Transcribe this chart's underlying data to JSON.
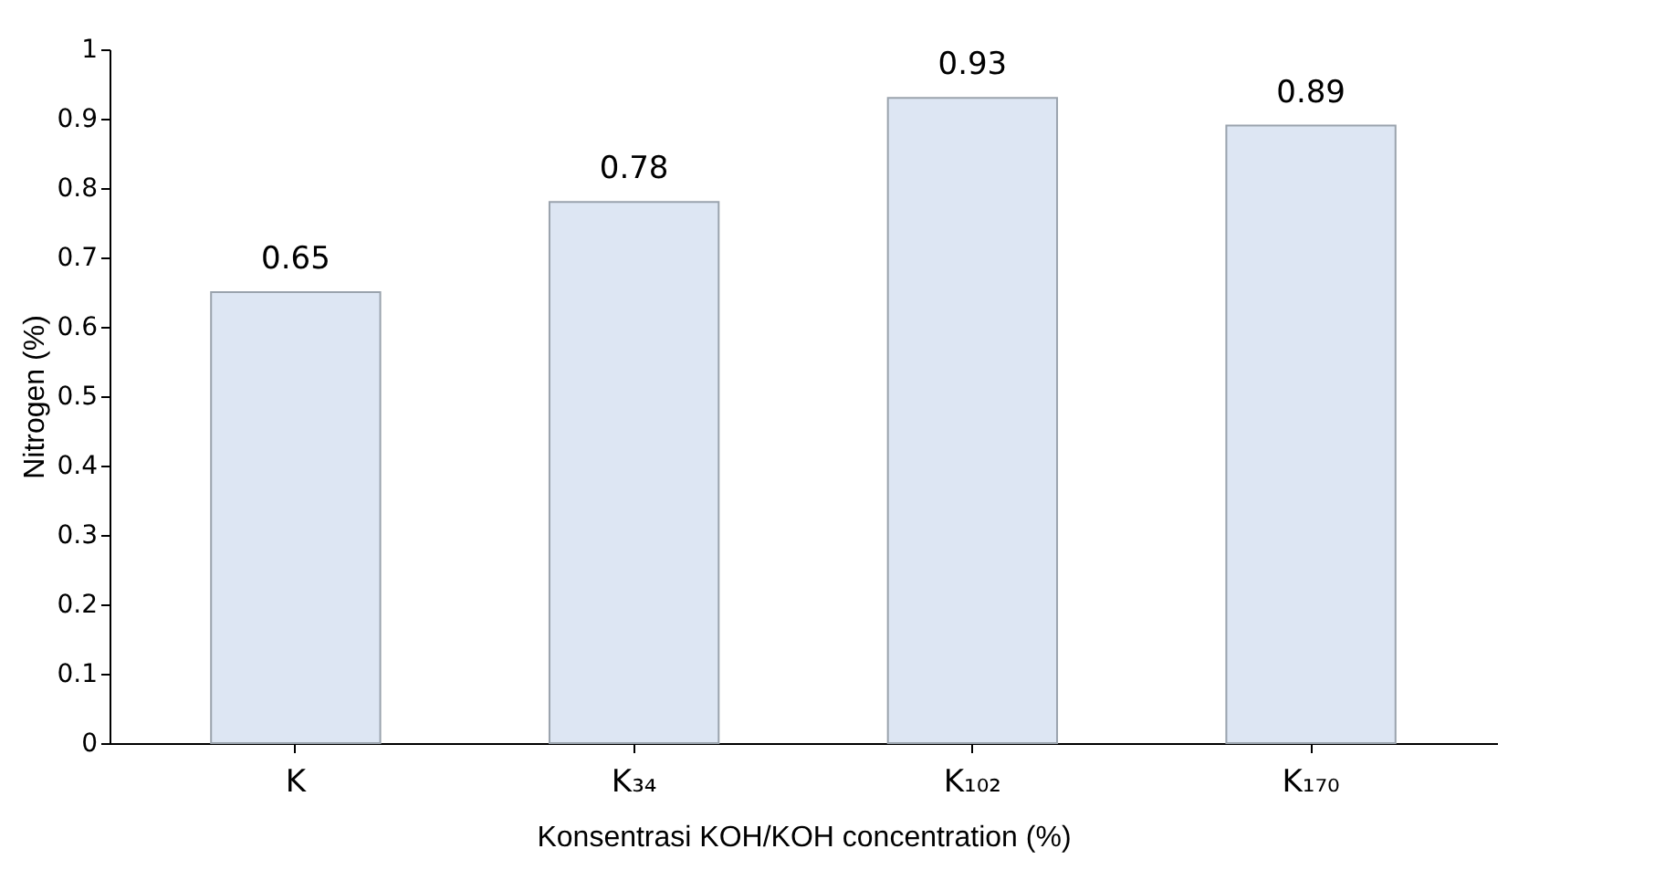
{
  "chart_data": {
    "type": "bar",
    "xlabel": "Konsentrasi KOH/KOH concentration (%)",
    "ylabel": "Nitrogen (%)",
    "categories": [
      "K",
      "K₃₄",
      "K₁₀₂",
      "K₁₇₀"
    ],
    "values": [
      0.65,
      0.78,
      0.93,
      0.89
    ],
    "color": "#dde6f3",
    "ylim": [
      0,
      1
    ],
    "yticks": [
      0,
      0.1,
      0.2,
      0.3,
      0.4,
      0.5,
      0.6,
      0.7,
      0.8,
      0.9,
      1
    ],
    "grid": false,
    "data_labels": true
  }
}
